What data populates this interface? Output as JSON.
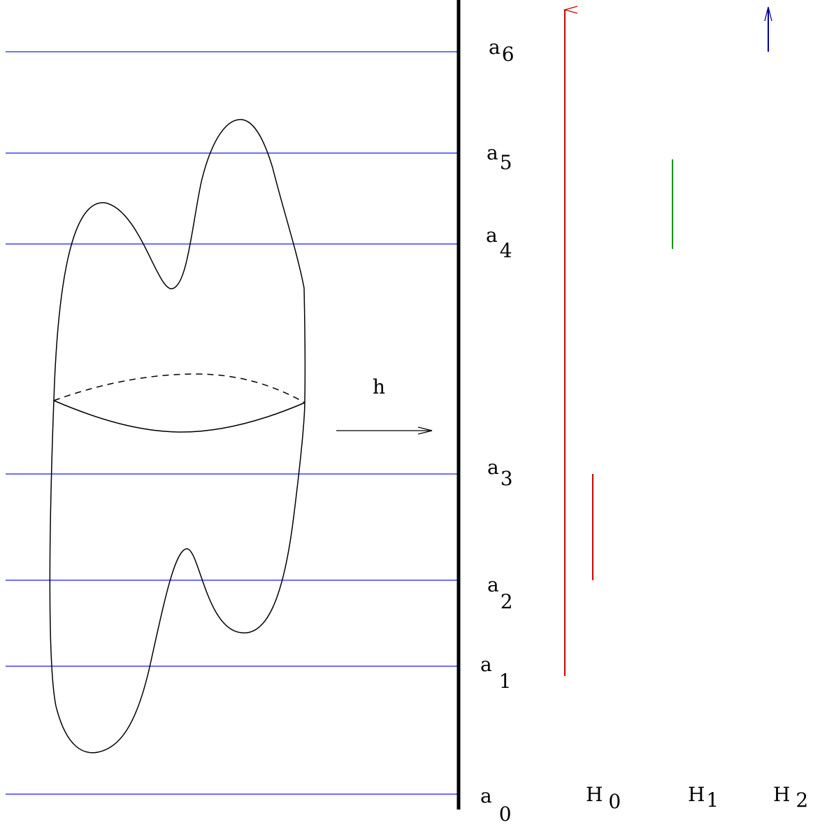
{
  "diagram": {
    "arrow_label": "h",
    "levels": [
      {
        "letter": "a",
        "index": "0"
      },
      {
        "letter": "a",
        "index": "1"
      },
      {
        "letter": "a",
        "index": "2"
      },
      {
        "letter": "a",
        "index": "3"
      },
      {
        "letter": "a",
        "index": "4"
      },
      {
        "letter": "a",
        "index": "5"
      },
      {
        "letter": "a",
        "index": "6"
      }
    ],
    "homology": [
      {
        "letter": "H",
        "index": "0"
      },
      {
        "letter": "H",
        "index": "1"
      },
      {
        "letter": "H",
        "index": "2"
      }
    ]
  },
  "colors": {
    "level_line": "#1a1aff",
    "h0_bar": "#cc0000",
    "h1_bar": "#009900",
    "h2_bar": "#000099",
    "outline": "#000000"
  }
}
